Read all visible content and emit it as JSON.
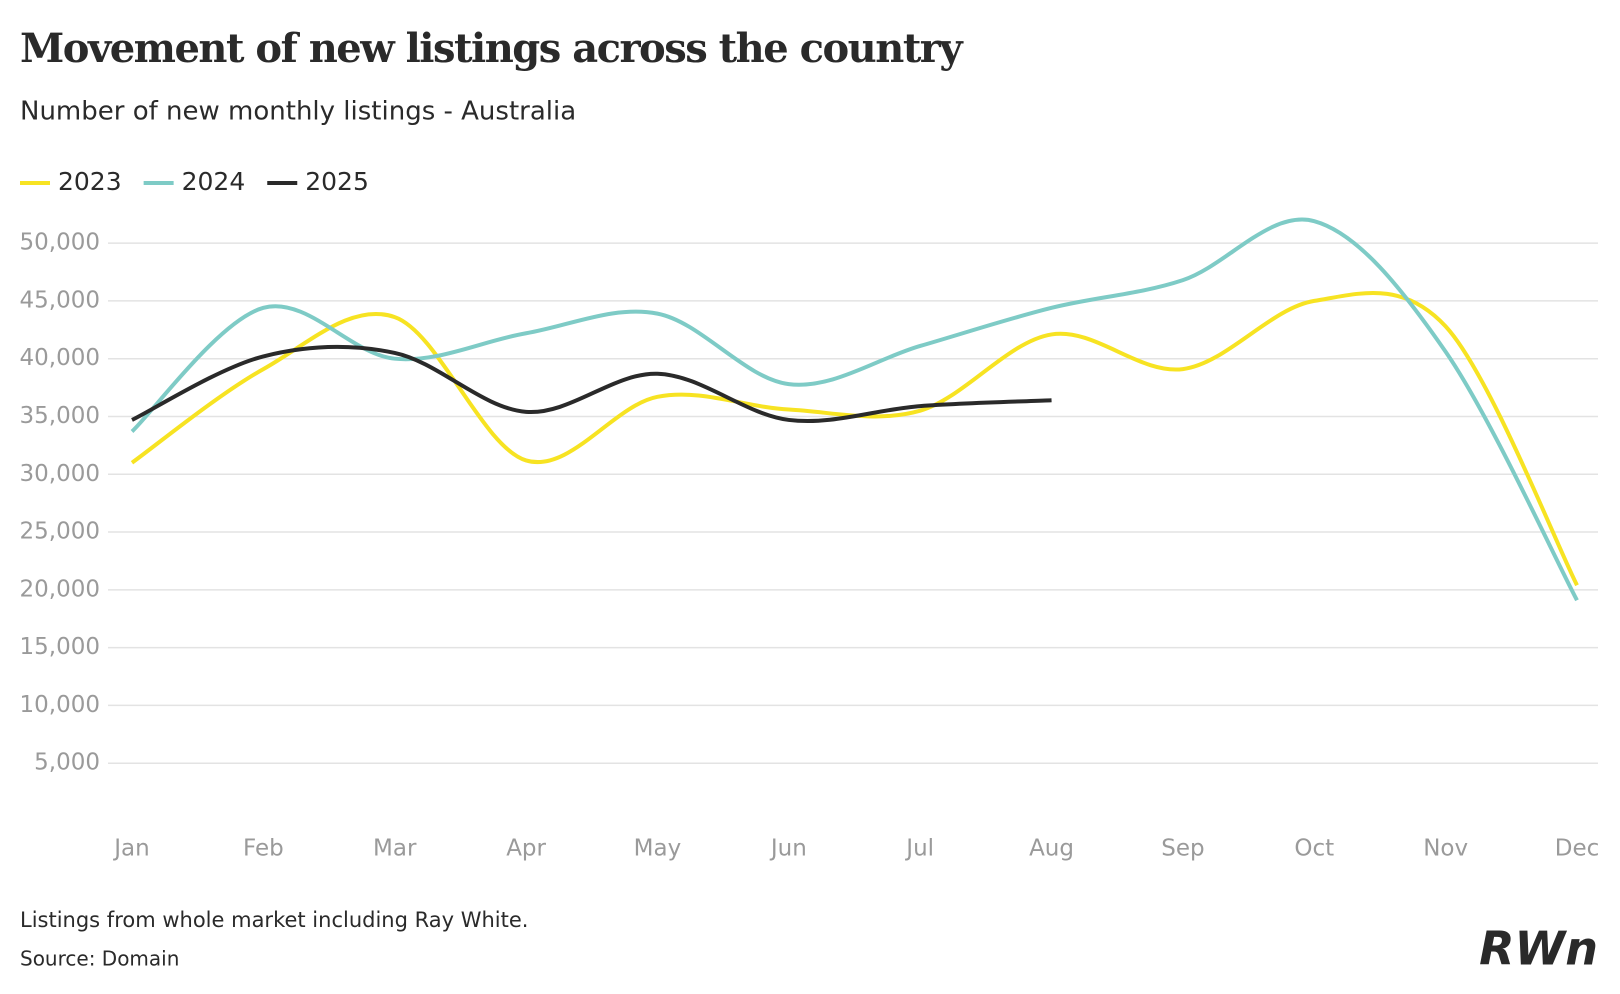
{
  "chart_data": {
    "type": "line",
    "title": "Movement of new listings across the country",
    "subtitle": "Number of new monthly listings - Australia",
    "categories": [
      "Jan",
      "Feb",
      "Mar",
      "Apr",
      "May",
      "Jun",
      "Jul",
      "Aug",
      "Sep",
      "Oct",
      "Nov",
      "Dec"
    ],
    "series": [
      {
        "name": "2023",
        "color": "#f7e322",
        "values": [
          31000,
          39100,
          43600,
          31200,
          36700,
          35600,
          35500,
          42100,
          39100,
          45000,
          42800,
          20400
        ]
      },
      {
        "name": "2024",
        "color": "#7ecbc6",
        "values": [
          33700,
          44400,
          40000,
          42200,
          43900,
          37800,
          41100,
          44400,
          46800,
          51900,
          40600,
          19100
        ]
      },
      {
        "name": "2025",
        "color": "#2a2a2a",
        "values": [
          34700,
          40200,
          40500,
          35400,
          38700,
          34700,
          35900,
          36400,
          null,
          null,
          null,
          null
        ]
      }
    ],
    "ylim": [
      0,
      52000
    ],
    "yticks": [
      {
        "value": 5000,
        "label": "5,000"
      },
      {
        "value": 10000,
        "label": "10,000"
      },
      {
        "value": 15000,
        "label": "15,000"
      },
      {
        "value": 20000,
        "label": "20,000"
      },
      {
        "value": 25000,
        "label": "25,000"
      },
      {
        "value": 30000,
        "label": "30,000"
      },
      {
        "value": 35000,
        "label": "35,000"
      },
      {
        "value": 40000,
        "label": "40,000"
      },
      {
        "value": 45000,
        "label": "45,000"
      },
      {
        "value": 50000,
        "label": "50,000"
      }
    ],
    "grid": true,
    "legend": "top-left",
    "footnote": "Listings from whole market including Ray White.",
    "source": "Source: Domain",
    "logo": "RWn"
  }
}
